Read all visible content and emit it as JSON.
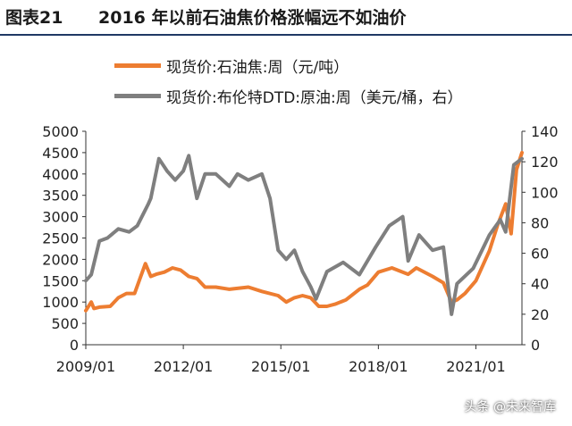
{
  "header": {
    "figure_number": "图表21",
    "title": "2016 年以前石油焦价格涨幅远不如油价"
  },
  "watermark": "头条 @未来智库",
  "chart_data": {
    "type": "line",
    "legend_placement": "top",
    "grid": false,
    "x_range": [
      "2009/01",
      "2022/06"
    ],
    "x_ticks": [
      "2009/01",
      "2012/01",
      "2015/01",
      "2018/01",
      "2021/01"
    ],
    "y_left": {
      "range": [
        0,
        5000
      ],
      "ticks": [
        "0",
        "500",
        "1000",
        "1500",
        "2000",
        "2500",
        "3000",
        "3500",
        "4000",
        "4500",
        "5000"
      ]
    },
    "y_right": {
      "range": [
        0,
        140
      ],
      "ticks": [
        "0",
        "20",
        "40",
        "60",
        "80",
        "100",
        "120",
        "140"
      ]
    },
    "series": [
      {
        "name": "现货价:石油焦:周（元/吨）",
        "axis": "left",
        "color": "#ed7d31",
        "points": [
          [
            "2009-01",
            800
          ],
          [
            "2009-03",
            1000
          ],
          [
            "2009-04",
            850
          ],
          [
            "2009-06",
            880
          ],
          [
            "2009-10",
            900
          ],
          [
            "2010-01",
            1100
          ],
          [
            "2010-04",
            1200
          ],
          [
            "2010-07",
            1200
          ],
          [
            "2010-09",
            1550
          ],
          [
            "2010-11",
            1900
          ],
          [
            "2011-01",
            1600
          ],
          [
            "2011-03",
            1650
          ],
          [
            "2011-06",
            1700
          ],
          [
            "2011-09",
            1800
          ],
          [
            "2011-12",
            1750
          ],
          [
            "2012-03",
            1600
          ],
          [
            "2012-06",
            1550
          ],
          [
            "2012-09",
            1350
          ],
          [
            "2013-01",
            1350
          ],
          [
            "2013-06",
            1300
          ],
          [
            "2014-01",
            1350
          ],
          [
            "2014-06",
            1250
          ],
          [
            "2014-12",
            1150
          ],
          [
            "2015-03",
            1000
          ],
          [
            "2015-06",
            1100
          ],
          [
            "2015-09",
            1150
          ],
          [
            "2015-12",
            1100
          ],
          [
            "2016-03",
            900
          ],
          [
            "2016-06",
            900
          ],
          [
            "2016-09",
            950
          ],
          [
            "2017-01",
            1050
          ],
          [
            "2017-06",
            1300
          ],
          [
            "2017-09",
            1400
          ],
          [
            "2018-01",
            1700
          ],
          [
            "2018-06",
            1800
          ],
          [
            "2018-12",
            1650
          ],
          [
            "2019-03",
            1800
          ],
          [
            "2019-09",
            1600
          ],
          [
            "2020-01",
            1450
          ],
          [
            "2020-04",
            1000
          ],
          [
            "2020-06",
            1050
          ],
          [
            "2020-09",
            1200
          ],
          [
            "2021-01",
            1500
          ],
          [
            "2021-06",
            2200
          ],
          [
            "2021-09",
            2800
          ],
          [
            "2021-12",
            3300
          ],
          [
            "2022-02",
            2600
          ],
          [
            "2022-04",
            4100
          ],
          [
            "2022-06",
            4500
          ]
        ]
      },
      {
        "name": "现货价:布伦特DTD:原油:周（美元/桶，右）",
        "axis": "right",
        "color": "#7f7f7f",
        "points": [
          [
            "2009-01",
            42
          ],
          [
            "2009-03",
            46
          ],
          [
            "2009-06",
            68
          ],
          [
            "2009-09",
            70
          ],
          [
            "2010-01",
            76
          ],
          [
            "2010-05",
            74
          ],
          [
            "2010-08",
            78
          ],
          [
            "2010-12",
            92
          ],
          [
            "2011-01",
            96
          ],
          [
            "2011-04",
            122
          ],
          [
            "2011-07",
            114
          ],
          [
            "2011-10",
            108
          ],
          [
            "2012-01",
            114
          ],
          [
            "2012-03",
            124
          ],
          [
            "2012-06",
            96
          ],
          [
            "2012-09",
            112
          ],
          [
            "2013-01",
            112
          ],
          [
            "2013-06",
            104
          ],
          [
            "2013-09",
            112
          ],
          [
            "2014-01",
            108
          ],
          [
            "2014-06",
            112
          ],
          [
            "2014-09",
            96
          ],
          [
            "2014-12",
            62
          ],
          [
            "2015-03",
            56
          ],
          [
            "2015-06",
            62
          ],
          [
            "2015-09",
            48
          ],
          [
            "2015-12",
            38
          ],
          [
            "2016-02",
            30
          ],
          [
            "2016-06",
            48
          ],
          [
            "2016-12",
            54
          ],
          [
            "2017-06",
            46
          ],
          [
            "2017-12",
            64
          ],
          [
            "2018-05",
            78
          ],
          [
            "2018-10",
            84
          ],
          [
            "2018-12",
            55
          ],
          [
            "2019-04",
            72
          ],
          [
            "2019-09",
            62
          ],
          [
            "2020-01",
            64
          ],
          [
            "2020-04",
            20
          ],
          [
            "2020-06",
            40
          ],
          [
            "2020-12",
            50
          ],
          [
            "2021-06",
            72
          ],
          [
            "2021-10",
            82
          ],
          [
            "2021-12",
            74
          ],
          [
            "2022-03",
            118
          ],
          [
            "2022-06",
            122
          ]
        ]
      }
    ]
  }
}
